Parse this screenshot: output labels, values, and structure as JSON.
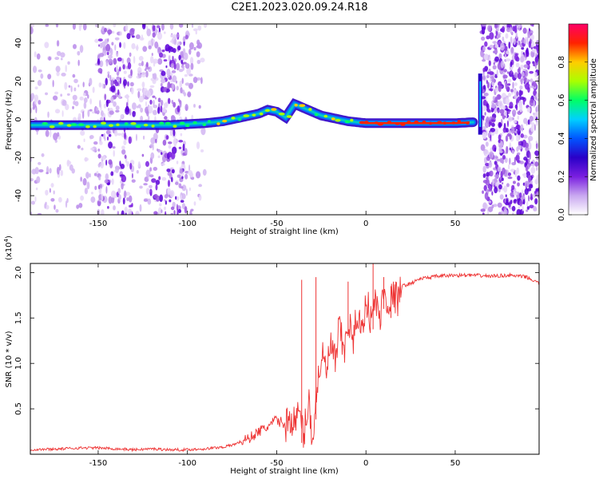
{
  "title": "C2E1.2023.020.09.24.R18",
  "chart_data": [
    {
      "type": "heatmap",
      "xlabel": "Height of straight line (km)",
      "ylabel": "Frequency (Hz)",
      "xlim": [
        -188,
        97
      ],
      "ylim": [
        -50,
        50
      ],
      "x_ticks": [
        -150,
        -100,
        -50,
        0,
        50
      ],
      "y_ticks": [
        -40,
        -20,
        0,
        20,
        40
      ],
      "colorbar": {
        "label": "Normalized spectral amplitude",
        "range": [
          0,
          1
        ],
        "ticks": [
          0.0,
          0.2,
          0.4,
          0.6,
          0.8
        ],
        "colors": [
          "#ffffff",
          "#c9a8f0",
          "#7a1fe0",
          "#2a00c8",
          "#0055ff",
          "#00d0ff",
          "#00ff66",
          "#aaff00",
          "#ffcc00",
          "#ff2200",
          "#ff0066"
        ]
      },
      "ridge": {
        "x": [
          -188,
          -170,
          -150,
          -130,
          -110,
          -100,
          -90,
          -80,
          -70,
          -60,
          -55,
          -50,
          -45,
          -40,
          -35,
          -30,
          -25,
          -20,
          -10,
          0,
          10,
          20,
          30,
          40,
          50,
          60,
          62,
          64,
          66
        ],
        "y": [
          -3,
          -3,
          -3,
          -3,
          -3,
          -2.5,
          -2,
          -1,
          1,
          3,
          5,
          4,
          1,
          8,
          6,
          4,
          2,
          1,
          -1,
          -2,
          -2,
          -2,
          -2,
          -2,
          -2,
          -1.5,
          0,
          10,
          20
        ]
      }
    },
    {
      "type": "line",
      "xlabel": "Height of straight line (km)",
      "ylabel": "SNR (10 * v/v)",
      "y_multiplier": "(x10",
      "y_multiplier_exp": "4",
      "y_multiplier_close": ")",
      "xlim": [
        -188,
        97
      ],
      "ylim": [
        0,
        2.1
      ],
      "x_ticks": [
        -150,
        -100,
        -50,
        0,
        50
      ],
      "y_ticks": [
        0.5,
        1.0,
        1.5,
        2.0
      ],
      "series": [
        {
          "color": "#ee3333",
          "x": [
            -188,
            -170,
            -160,
            -150,
            -140,
            -130,
            -120,
            -110,
            -100,
            -90,
            -80,
            -75,
            -70,
            -65,
            -60,
            -55,
            -50,
            -45,
            -42,
            -40,
            -37,
            -35,
            -32,
            -30,
            -27,
            -25,
            -22,
            -20,
            -17,
            -15,
            -12,
            -10,
            -7,
            -5,
            -2,
            0,
            3,
            5,
            8,
            10,
            13,
            15,
            18,
            20,
            25,
            30,
            40,
            50,
            60,
            70,
            80,
            90,
            97
          ],
          "y": [
            0.05,
            0.06,
            0.07,
            0.07,
            0.06,
            0.05,
            0.06,
            0.05,
            0.05,
            0.06,
            0.08,
            0.1,
            0.14,
            0.18,
            0.25,
            0.3,
            0.38,
            0.32,
            0.4,
            0.35,
            0.45,
            0.2,
            0.6,
            0.15,
            0.8,
            1.1,
            0.9,
            1.2,
            1.0,
            1.4,
            1.1,
            1.5,
            1.2,
            1.6,
            1.3,
            1.75,
            1.45,
            1.7,
            1.5,
            1.8,
            1.65,
            1.75,
            1.7,
            1.85,
            1.88,
            1.93,
            1.96,
            1.97,
            1.97,
            1.96,
            1.97,
            1.95,
            1.88
          ]
        }
      ],
      "spikes": [
        {
          "x": -36,
          "y": 1.92
        },
        {
          "x": -28,
          "y": 1.95
        },
        {
          "x": -10,
          "y": 1.9
        },
        {
          "x": 4,
          "y": 2.1
        },
        {
          "x": 10,
          "y": 1.95
        },
        {
          "x": 14,
          "y": 1.85
        }
      ]
    }
  ]
}
